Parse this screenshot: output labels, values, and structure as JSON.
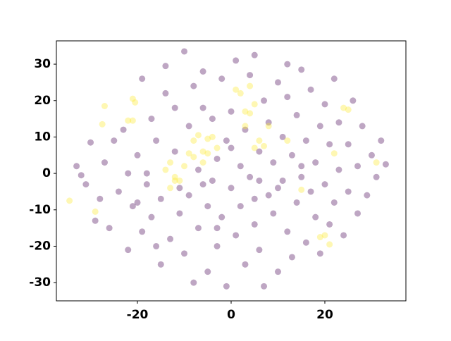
{
  "chart_data": {
    "type": "scatter",
    "xlim": [
      -37.3,
      37.3
    ],
    "ylim": [
      -35,
      36.4
    ],
    "xticks": [
      -20,
      0,
      20
    ],
    "yticks": [
      -30,
      -20,
      -10,
      0,
      10,
      20,
      30
    ],
    "series": [
      {
        "color": "#440154",
        "x": [
          -33,
          -31,
          -30,
          -29,
          -28,
          -27,
          -26,
          -25,
          -24,
          -23,
          -22,
          -22,
          -21,
          -20,
          -19,
          -19,
          -18,
          -17,
          -17,
          -16,
          -15,
          -15,
          -14,
          -14,
          -13,
          -12,
          -12,
          -11,
          -10,
          -10,
          -9,
          -9,
          -8,
          -8,
          -7,
          -7,
          -6,
          -6,
          -5,
          -5,
          -4,
          -4,
          -3,
          -3,
          -2,
          -2,
          -1,
          -1,
          0,
          0,
          1,
          1,
          2,
          2,
          3,
          3,
          4,
          4,
          5,
          5,
          6,
          6,
          7,
          7,
          8,
          8,
          9,
          9,
          10,
          10,
          11,
          11,
          12,
          12,
          13,
          13,
          14,
          14,
          15,
          15,
          16,
          16,
          17,
          17,
          18,
          18,
          19,
          19,
          20,
          20,
          21,
          21,
          22,
          22,
          23,
          23,
          24,
          25,
          25,
          26,
          27,
          27,
          28,
          29,
          30,
          31,
          32,
          33,
          -32,
          -20,
          -16,
          -11,
          -6,
          0,
          5,
          10,
          15,
          -18,
          6,
          -3,
          12
        ],
        "values": [
          2,
          -3,
          8.5,
          -13,
          -7,
          3,
          -15,
          9,
          -5,
          12,
          -21,
          0,
          -9,
          5,
          -16,
          26,
          -3,
          15,
          -12,
          9,
          -25,
          -7,
          22,
          29.5,
          -18,
          6,
          18,
          -11,
          33.5,
          -22,
          13,
          -6,
          24,
          -30,
          1,
          -15,
          28,
          18,
          -9,
          -27,
          -2,
          15,
          -20,
          4,
          26,
          -12,
          9,
          -31,
          -4,
          17,
          -17,
          31,
          2,
          -9,
          12,
          -25,
          27,
          -1,
          -14,
          32.5,
          6,
          -21,
          -31,
          20,
          -6,
          14,
          -11,
          3,
          25,
          -27,
          -2,
          10,
          -16,
          21,
          5,
          -23,
          -8,
          16,
          28.5,
          -1,
          -19,
          9,
          -5,
          23,
          -12,
          3,
          13,
          -22,
          -3,
          19,
          8,
          -14,
          26,
          -8,
          1,
          14,
          -17,
          -5,
          8,
          20,
          -11,
          2,
          13,
          -6,
          5,
          -1,
          9,
          2.5,
          -0.5,
          -8,
          -20,
          -4,
          -3,
          7,
          -7,
          -4,
          2,
          0,
          -2,
          -15,
          30
        ]
      },
      {
        "color": "#fde725",
        "x": [
          -34.5,
          -29,
          -27.5,
          -27,
          -21,
          -20.5,
          -21,
          -14,
          -13,
          -12,
          -13,
          -11,
          -9,
          -8,
          -7,
          -6,
          -5,
          -5,
          -4,
          -6,
          -8,
          -3,
          1,
          2,
          3,
          4,
          4,
          5,
          3,
          5,
          6,
          7,
          8,
          12,
          15,
          19,
          20,
          21,
          22,
          24,
          25,
          31,
          -22,
          -12,
          -10
        ],
        "values": [
          -7.5,
          -10.5,
          13.5,
          18.5,
          20.5,
          19.5,
          14.5,
          1,
          3,
          -2,
          -4,
          -2,
          5.5,
          9,
          10.5,
          6,
          9.5,
          5.5,
          10,
          3,
          4.5,
          7,
          23,
          22,
          17,
          16.5,
          24,
          19,
          13,
          7,
          9,
          7.5,
          13,
          9,
          -4.5,
          -17.5,
          -17,
          -19.5,
          5.5,
          18,
          17.5,
          3,
          14.5,
          -1,
          2
        ]
      }
    ]
  }
}
